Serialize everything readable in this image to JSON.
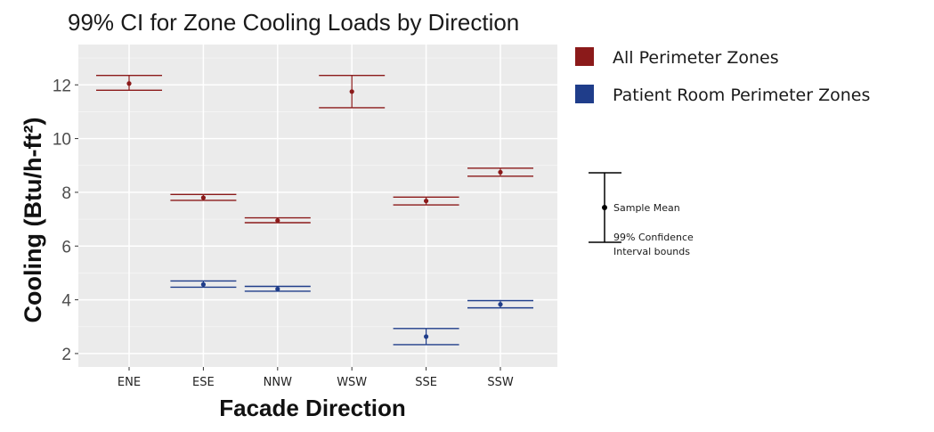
{
  "chart_data": {
    "type": "errorbar",
    "title": "99% CI for Zone Cooling Loads by Direction",
    "xlabel": "Facade Direction",
    "ylabel": "Cooling (Btu/h-ft²)",
    "categories": [
      "ENE",
      "ESE",
      "NNW",
      "WSW",
      "SSE",
      "SSW"
    ],
    "ylim": [
      1.5,
      13.5
    ],
    "yticks": [
      2,
      4,
      6,
      8,
      10,
      12
    ],
    "grid": true,
    "legend_position": "top-right",
    "series": [
      {
        "name": "All Perimeter Zones",
        "color": "#8b1a1a",
        "mean": [
          12.05,
          7.8,
          6.95,
          11.75,
          7.68,
          8.75
        ],
        "lower": [
          11.8,
          7.7,
          6.87,
          11.15,
          7.53,
          8.6
        ],
        "upper": [
          12.35,
          7.92,
          7.05,
          12.35,
          7.82,
          8.9
        ]
      },
      {
        "name": "Patient Room Perimeter Zones",
        "color": "#1f3d8a",
        "mean": [
          null,
          4.57,
          4.4,
          null,
          2.63,
          3.83
        ],
        "lower": [
          null,
          4.47,
          4.32,
          null,
          2.33,
          3.7
        ],
        "upper": [
          null,
          4.7,
          4.5,
          null,
          2.93,
          3.97
        ]
      }
    ],
    "annotation_key": {
      "mean_label": "Sample Mean",
      "bounds_label_line1": "99% Confidence",
      "bounds_label_line2": "Interval bounds"
    }
  }
}
